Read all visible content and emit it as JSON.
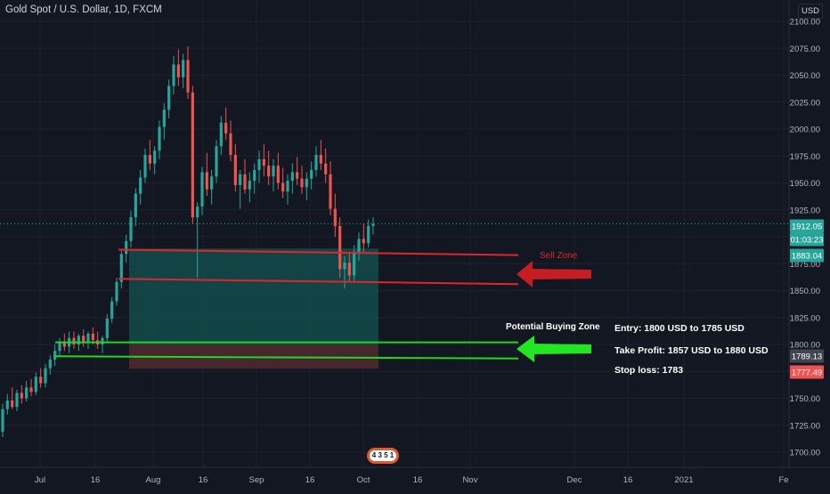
{
  "header": {
    "symbol_title": "Gold Spot / U.S. Dollar, 1D, FXCM",
    "currency": "USD"
  },
  "logo_text": "4 3 5 1",
  "colors": {
    "background": "#131722",
    "grid": "#1e222d",
    "up_candle": "#26a69a",
    "down_candle": "#ef5350",
    "sell_zone": "#e0262d",
    "buy_zone": "#22d622",
    "zone_fill": "#134c4b",
    "zone_fill_red": "#4c2a2e",
    "text": "#d1d4dc"
  },
  "chart_data": {
    "type": "candlestick",
    "title": "Gold Spot / U.S. Dollar, 1D, FXCM",
    "y_axis": {
      "ticks": [
        1700,
        1725,
        1750,
        1775,
        1800,
        1825,
        1850,
        1875,
        1900,
        1925,
        1950,
        1975,
        2000,
        2025,
        2050,
        2075,
        2100
      ],
      "tick_labels": [
        "1700.00",
        "1725.00",
        "1750.00",
        "1775.00",
        "1800.00",
        "1825.00",
        "1850.00",
        "1875.00",
        "1900.00",
        "1925.00",
        "1950.00",
        "1975.00",
        "2000.00",
        "2025.00",
        "2050.00",
        "2075.00",
        "2100.00"
      ],
      "range": [
        1684,
        2106
      ]
    },
    "x_axis": {
      "labels": [
        "Jul",
        "16",
        "Aug",
        "16",
        "Sep",
        "16",
        "Oct",
        "16",
        "Nov",
        "Dec",
        "16",
        "2021",
        "Fe"
      ]
    },
    "price_badges": [
      {
        "label": "1912.05",
        "value": 1912.05,
        "color": "#26a69a"
      },
      {
        "label": "01:03:23",
        "value": 1903,
        "color": "#26a69a"
      },
      {
        "label": "1883.04",
        "value": 1883.04,
        "color": "#26a69a"
      },
      {
        "label": "1789.13",
        "value": 1789.13,
        "color": "#434651"
      },
      {
        "label": "1777.49",
        "value": 1777.49,
        "color": "#ef5350"
      }
    ],
    "current_price": 1912.05,
    "candles": [
      [
        1719,
        1745,
        1714,
        1740
      ],
      [
        1740,
        1754,
        1735,
        1748
      ],
      [
        1748,
        1760,
        1740,
        1742
      ],
      [
        1742,
        1758,
        1738,
        1755
      ],
      [
        1755,
        1762,
        1745,
        1750
      ],
      [
        1750,
        1766,
        1747,
        1760
      ],
      [
        1760,
        1768,
        1752,
        1756
      ],
      [
        1756,
        1774,
        1753,
        1770
      ],
      [
        1770,
        1778,
        1760,
        1764
      ],
      [
        1764,
        1782,
        1760,
        1778
      ],
      [
        1778,
        1790,
        1772,
        1786
      ],
      [
        1786,
        1800,
        1780,
        1794
      ],
      [
        1794,
        1806,
        1788,
        1802
      ],
      [
        1802,
        1810,
        1794,
        1798
      ],
      [
        1798,
        1812,
        1792,
        1806
      ],
      [
        1806,
        1812,
        1796,
        1800
      ],
      [
        1800,
        1810,
        1794,
        1808
      ],
      [
        1808,
        1814,
        1798,
        1802
      ],
      [
        1802,
        1812,
        1796,
        1810
      ],
      [
        1810,
        1816,
        1800,
        1804
      ],
      [
        1804,
        1812,
        1796,
        1800
      ],
      [
        1800,
        1808,
        1792,
        1806
      ],
      [
        1806,
        1828,
        1802,
        1824
      ],
      [
        1824,
        1844,
        1820,
        1840
      ],
      [
        1840,
        1862,
        1836,
        1858
      ],
      [
        1858,
        1888,
        1852,
        1884
      ],
      [
        1884,
        1902,
        1876,
        1896
      ],
      [
        1896,
        1924,
        1890,
        1918
      ],
      [
        1918,
        1945,
        1910,
        1940
      ],
      [
        1940,
        1962,
        1930,
        1955
      ],
      [
        1955,
        1982,
        1950,
        1976
      ],
      [
        1976,
        1990,
        1962,
        1968
      ],
      [
        1968,
        1984,
        1958,
        1980
      ],
      [
        1980,
        2008,
        1972,
        2002
      ],
      [
        2002,
        2024,
        1990,
        2018
      ],
      [
        2018,
        2046,
        2010,
        2040
      ],
      [
        2040,
        2068,
        2032,
        2060
      ],
      [
        2060,
        2074,
        2040,
        2048
      ],
      [
        2048,
        2070,
        2038,
        2064
      ],
      [
        2064,
        2077,
        2028,
        2034
      ],
      [
        2034,
        2040,
        1912,
        1918
      ],
      [
        1918,
        1932,
        1862,
        1928
      ],
      [
        1928,
        1965,
        1920,
        1960
      ],
      [
        1960,
        1978,
        1938,
        1944
      ],
      [
        1944,
        1962,
        1930,
        1956
      ],
      [
        1956,
        1990,
        1950,
        1984
      ],
      [
        1984,
        2012,
        1976,
        2006
      ],
      [
        2006,
        2020,
        1990,
        1996
      ],
      [
        1996,
        2008,
        1970,
        1976
      ],
      [
        1976,
        1986,
        1942,
        1948
      ],
      [
        1948,
        1962,
        1926,
        1958
      ],
      [
        1958,
        1972,
        1940,
        1944
      ],
      [
        1944,
        1960,
        1932,
        1952
      ],
      [
        1952,
        1968,
        1940,
        1962
      ],
      [
        1962,
        1980,
        1950,
        1972
      ],
      [
        1972,
        1986,
        1956,
        1966
      ],
      [
        1966,
        1980,
        1948,
        1956
      ],
      [
        1956,
        1972,
        1942,
        1966
      ],
      [
        1966,
        1978,
        1944,
        1950
      ],
      [
        1950,
        1964,
        1936,
        1942
      ],
      [
        1942,
        1958,
        1930,
        1952
      ],
      [
        1952,
        1968,
        1940,
        1960
      ],
      [
        1960,
        1974,
        1948,
        1954
      ],
      [
        1954,
        1966,
        1940,
        1946
      ],
      [
        1946,
        1960,
        1934,
        1954
      ],
      [
        1954,
        1970,
        1944,
        1962
      ],
      [
        1962,
        1984,
        1956,
        1976
      ],
      [
        1976,
        1990,
        1962,
        1968
      ],
      [
        1968,
        1982,
        1950,
        1958
      ],
      [
        1958,
        1970,
        1920,
        1926
      ],
      [
        1926,
        1940,
        1900,
        1910
      ],
      [
        1910,
        1918,
        1862,
        1870
      ],
      [
        1870,
        1882,
        1852,
        1876
      ],
      [
        1876,
        1886,
        1858,
        1864
      ],
      [
        1864,
        1892,
        1858,
        1886
      ],
      [
        1886,
        1904,
        1878,
        1898
      ],
      [
        1898,
        1912,
        1886,
        1894
      ],
      [
        1894,
        1916,
        1890,
        1910
      ],
      [
        1910,
        1918,
        1902,
        1912
      ]
    ],
    "annotations": {
      "sell_zone": {
        "label": "Sell Zone",
        "lines": [
          [
            1888,
            1883
          ],
          [
            1861,
            1856
          ]
        ],
        "color": "#e0262d"
      },
      "buy_zone": {
        "label": "Potential Buying Zone",
        "lines": [
          [
            1802,
            1802
          ],
          [
            1789,
            1787
          ]
        ],
        "color": "#22d622"
      },
      "notes": [
        "Entry: 1800 USD to 1785 USD",
        "Take Profit: 1857 USD to 1880 USD",
        "Stop loss: 1783"
      ],
      "target_box": {
        "top": 1889,
        "bottom": 1777.49
      }
    }
  }
}
